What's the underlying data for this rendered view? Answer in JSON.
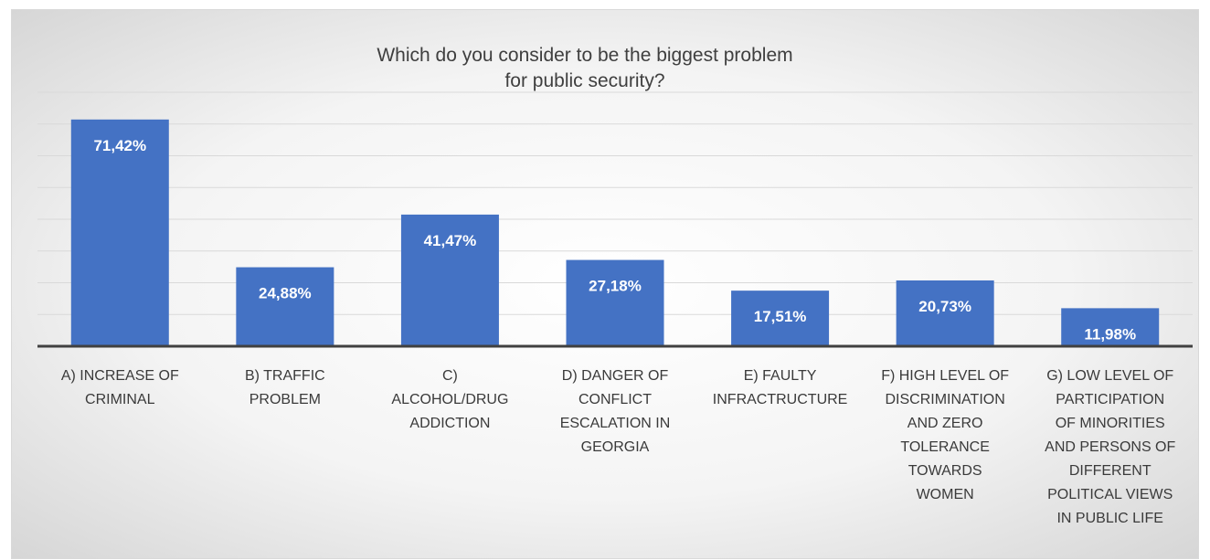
{
  "chart_data": {
    "type": "bar",
    "title": "Which do you consider to be the biggest problem for public security?",
    "title_lines": [
      "Which do you consider to be the biggest problem",
      "for public security?"
    ],
    "categories": [
      "A) INCREASE OF CRIMINAL",
      "B) TRAFFIC PROBLEM",
      "C) ALCOHOL/DRUG ADDICTION",
      "D) DANGER OF CONFLICT ESCALATION IN GEORGIA",
      "E) FAULTY INFRACTRUCTURE",
      "F) HIGH LEVEL OF DISCRIMINATION AND ZERO TOLERANCE TOWARDS WOMEN",
      "G) LOW LEVEL OF PARTICIPATION OF MINORITIES AND PERSONS OF DIFFERENT POLITICAL VIEWS IN PUBLIC LIFE"
    ],
    "category_lines": [
      [
        "A) INCREASE OF",
        "CRIMINAL"
      ],
      [
        "B) TRAFFIC",
        "PROBLEM"
      ],
      [
        "C)",
        "ALCOHOL/DRUG",
        "ADDICTION"
      ],
      [
        "D) DANGER OF",
        "CONFLICT",
        "ESCALATION IN",
        "GEORGIA"
      ],
      [
        "E) FAULTY",
        "INFRACTRUCTURE"
      ],
      [
        "F) HIGH LEVEL OF",
        "DISCRIMINATION",
        "AND ZERO",
        "TOLERANCE",
        "TOWARDS",
        "WOMEN"
      ],
      [
        "G) LOW LEVEL OF",
        "PARTICIPATION",
        "OF MINORITIES",
        "AND PERSONS OF",
        "DIFFERENT",
        "POLITICAL VIEWS",
        "IN PUBLIC LIFE"
      ]
    ],
    "values": [
      71.42,
      24.88,
      41.47,
      27.18,
      17.51,
      20.73,
      11.98
    ],
    "value_labels": [
      "71,42%",
      "24,88%",
      "41,47%",
      "27,18%",
      "17,51%",
      "20,73%",
      "11,98%"
    ],
    "ylim": [
      0,
      80
    ],
    "gridline_step": 10,
    "grid": true,
    "legend": "none",
    "bar_color": "#4472c4",
    "xlabel": "",
    "ylabel": ""
  }
}
